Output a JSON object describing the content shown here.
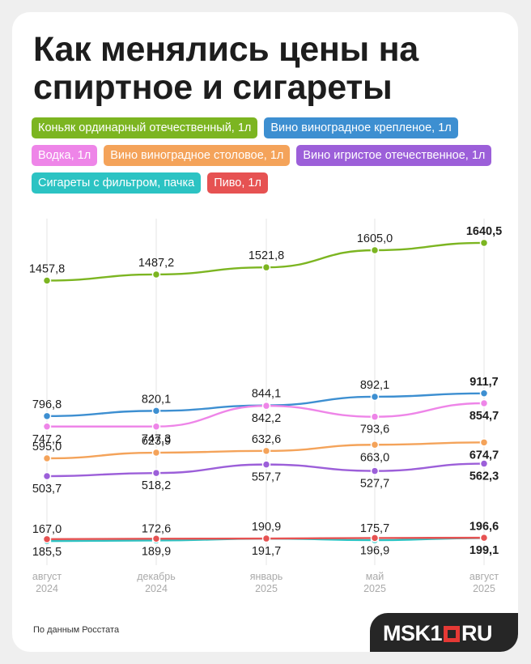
{
  "title": "Как менялись цены на спиртное и сигареты",
  "source": "По данным Росстата",
  "logo": {
    "main": "MSK1",
    "tail": "RU"
  },
  "colors": {
    "background": "#efefef",
    "card": "#ffffff",
    "logo_bg": "#262626",
    "logo_accent": "#e53935",
    "tick_text": "#aaaaaa",
    "grid": "#e4e4e4"
  },
  "chart_data": {
    "type": "line",
    "title": "Как менялись цены на спиртное и сигареты",
    "categories": [
      "август 2024",
      "декабрь 2024",
      "январь 2025",
      "май 2025",
      "август 2025"
    ],
    "x_tick_labels": [
      {
        "line1": "август",
        "line2": "2024"
      },
      {
        "line1": "декабрь",
        "line2": "2024"
      },
      {
        "line1": "январь",
        "line2": "2025"
      },
      {
        "line1": "май",
        "line2": "2025"
      },
      {
        "line1": "август",
        "line2": "2025"
      }
    ],
    "grid": "vertical",
    "legend_position": "top",
    "series": [
      {
        "name": "Коньяк ординарный отечественный, 1л",
        "color": "#7cb521",
        "values": [
          1457.8,
          1487.2,
          1521.8,
          1605.0,
          1640.5
        ],
        "labels": [
          "1457,8",
          "1487,2",
          "1521,8",
          "1605,0",
          "1640,5"
        ]
      },
      {
        "name": "Вино виноградное крепленое, 1л",
        "color": "#3d8fd1",
        "values": [
          796.8,
          820.1,
          844.1,
          892.1,
          911.7
        ],
        "labels": [
          "796,8",
          "820,1",
          "844,1",
          "892,1",
          "911,7"
        ]
      },
      {
        "name": "Водка, 1л",
        "color": "#ee85e8",
        "values": [
          747.2,
          747.3,
          842.2,
          793.6,
          854.7
        ],
        "labels": [
          "747,2",
          "747,3",
          "842,2",
          "793,6",
          "854,7"
        ]
      },
      {
        "name": "Вино виноградное столовое, 1л",
        "color": "#f4a35a",
        "values": [
          595.0,
          623.9,
          632.6,
          663.0,
          674.7
        ],
        "labels": [
          "595,0",
          "623,9",
          "632,6",
          "663,0",
          "674,7"
        ]
      },
      {
        "name": "Вино игристое отечественное, 1л",
        "color": "#9c5fd9",
        "values": [
          503.7,
          518.2,
          557.7,
          527.7,
          562.3
        ],
        "labels": [
          "503,7",
          "518,2",
          "557,7",
          "527,7",
          "562,3"
        ]
      },
      {
        "name": "Сигареты с фильтром, пачка",
        "color": "#2cc3c3",
        "values": [
          167.0,
          172.6,
          190.9,
          175.7,
          196.6
        ],
        "labels": [
          "167,0",
          "172,6",
          "190,9",
          "175,7",
          "196,6"
        ]
      },
      {
        "name": "Пиво, 1л",
        "color": "#e65252",
        "values": [
          185.5,
          189.9,
          191.7,
          196.9,
          199.1
        ],
        "labels": [
          "185,5",
          "189,9",
          "191,7",
          "196,9",
          "199,1"
        ]
      }
    ]
  }
}
